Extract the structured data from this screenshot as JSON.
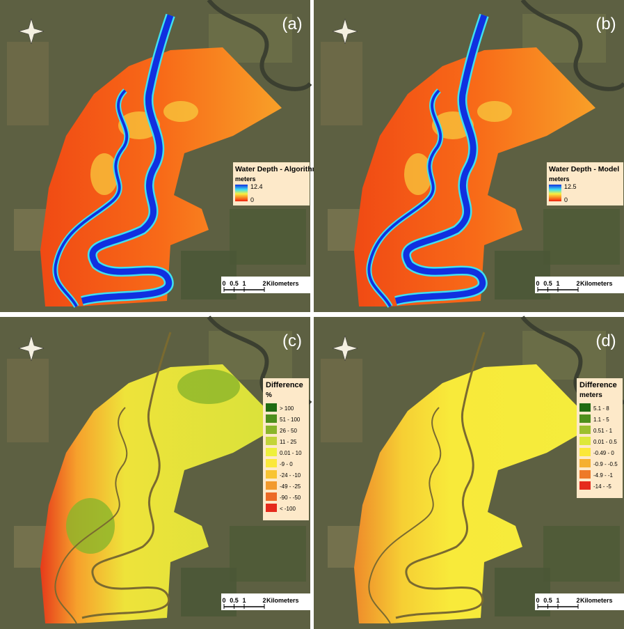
{
  "panels": [
    {
      "label": "(a)",
      "legend": {
        "title": "Water Depth - Algorithm",
        "unit": "meters",
        "max": 12.4,
        "min": 0
      },
      "scale_bar": {
        "ticks": [
          0,
          0.5,
          1,
          2
        ],
        "unit": "Kilometers"
      }
    },
    {
      "label": "(b)",
      "legend": {
        "title": "Water Depth - Model",
        "unit": "meters",
        "max": 12.5,
        "min": 0
      },
      "scale_bar": {
        "ticks": [
          0,
          0.5,
          1,
          2
        ],
        "unit": "Kilometers"
      }
    },
    {
      "label": "(c)",
      "legend": {
        "title": "Difference",
        "unit": "%",
        "classes": [
          {
            "label": "> 100",
            "color": "#1f6b12"
          },
          {
            "label": "51 - 100",
            "color": "#4e8f1c"
          },
          {
            "label": "26 - 50",
            "color": "#8ab52a"
          },
          {
            "label": "11 - 25",
            "color": "#c3d43a"
          },
          {
            "label": "0.01 - 10",
            "color": "#eef03c"
          },
          {
            "label": "-9 - 0",
            "color": "#fbe83a"
          },
          {
            "label": "-24 - -10",
            "color": "#f8c432"
          },
          {
            "label": "-49 - -25",
            "color": "#f29a2c"
          },
          {
            "label": "-90 - -50",
            "color": "#ec6a26"
          },
          {
            "label": "< -100",
            "color": "#e52a1c"
          }
        ]
      },
      "scale_bar": {
        "ticks": [
          0,
          0.5,
          1,
          2
        ],
        "unit": "Kilometers"
      }
    },
    {
      "label": "(d)",
      "legend": {
        "title": "Difference",
        "unit": "meters",
        "classes": [
          {
            "label": "5.1 - 8",
            "color": "#1f6b12"
          },
          {
            "label": "1.1 - 5",
            "color": "#4e8f1c"
          },
          {
            "label": "0.51 - 1",
            "color": "#9cbf2e"
          },
          {
            "label": "0.01 - 0.5",
            "color": "#dde83a"
          },
          {
            "label": "-0.49 - 0",
            "color": "#fbe83a"
          },
          {
            "label": "-0.9 - -0.5",
            "color": "#f5b030"
          },
          {
            "label": "-4.9 - -1",
            "color": "#ee7a28"
          },
          {
            "label": "-14 - -5",
            "color": "#e52a1c"
          }
        ]
      },
      "scale_bar": {
        "ticks": [
          0,
          0.5,
          1,
          2
        ],
        "unit": "Kilometers"
      }
    }
  ]
}
